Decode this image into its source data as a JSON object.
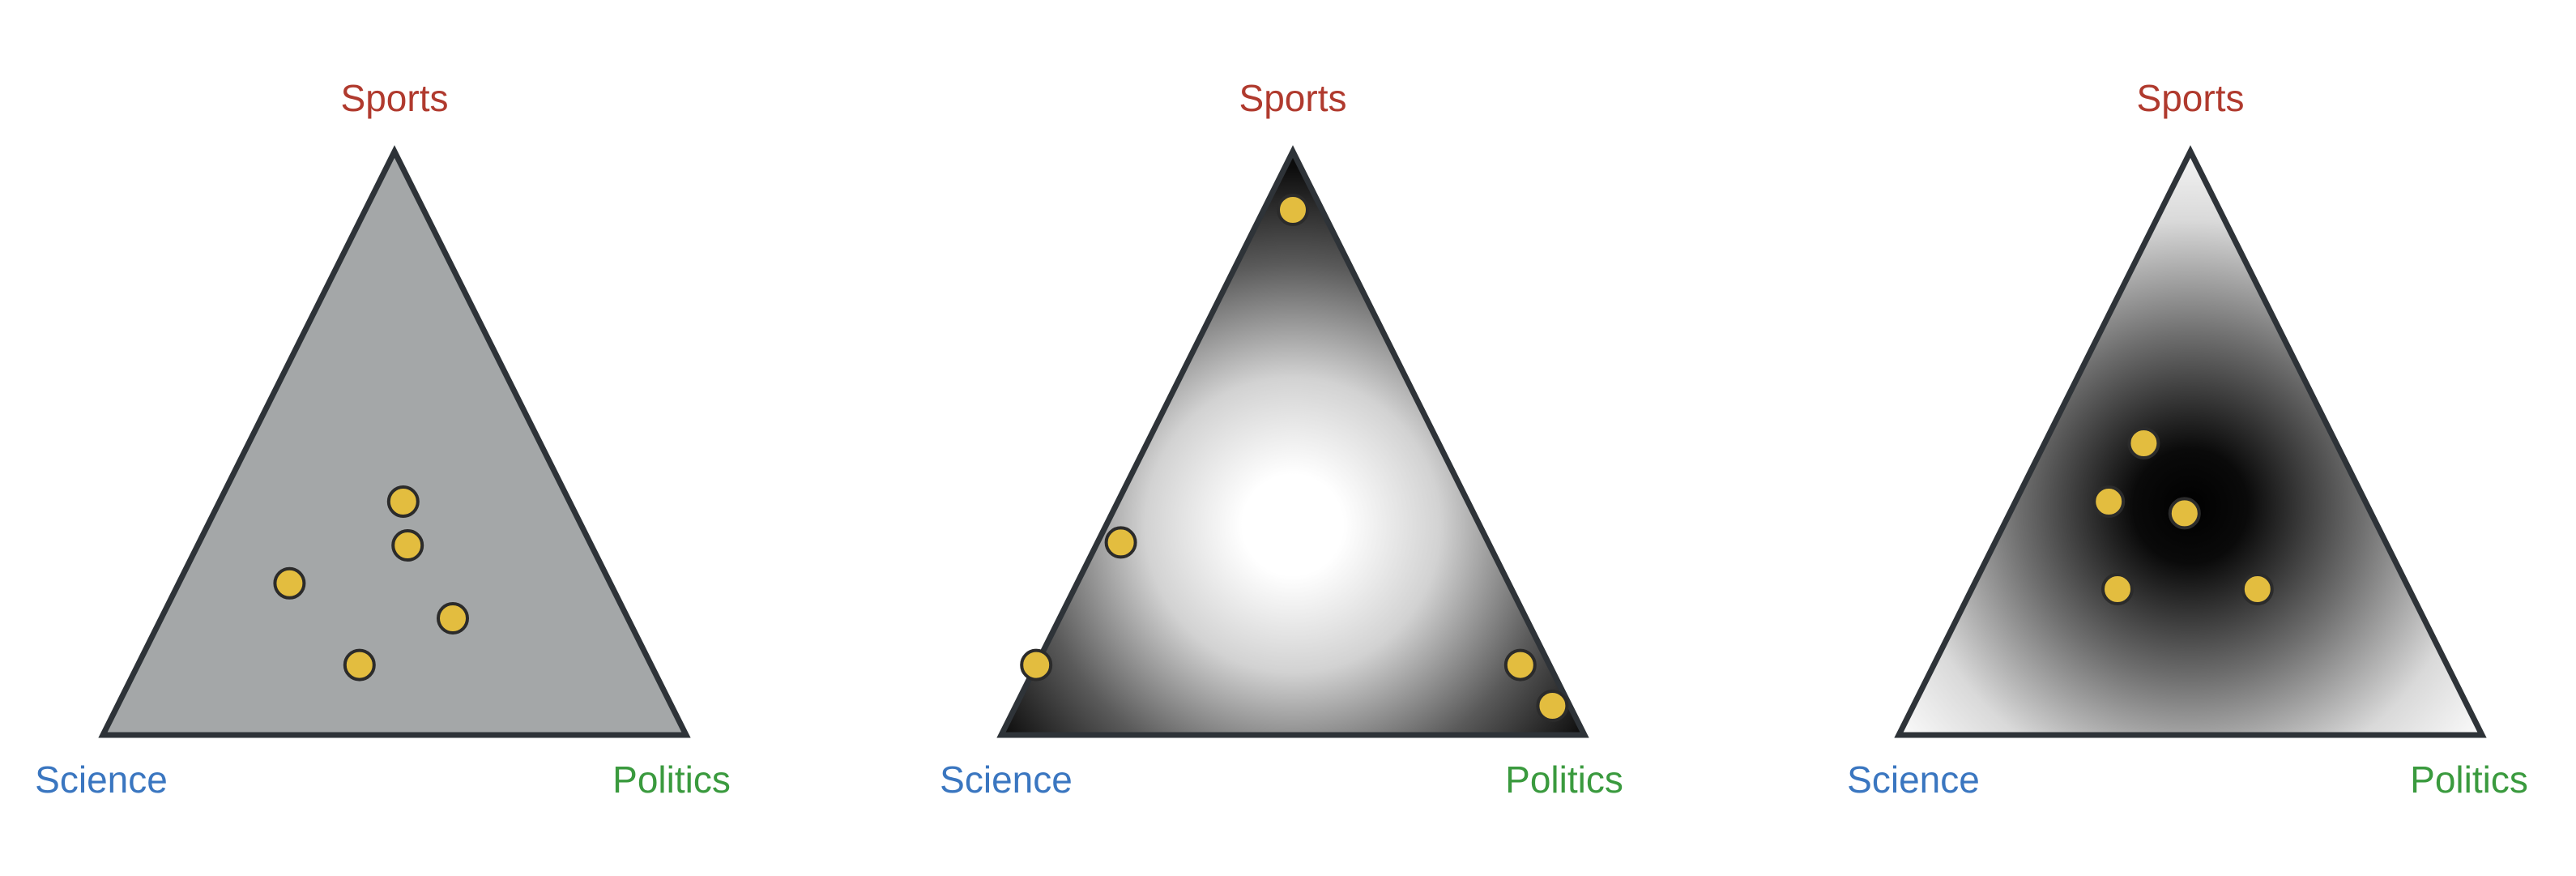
{
  "colors": {
    "sports": "#b03a2e",
    "science": "#3a76c0",
    "politics": "#3a9a3e",
    "point_fill": "#e3bd3f",
    "point_stroke": "#2b2b2b",
    "triangle_stroke": "#2e3338",
    "uniform_fill": "#a4a7a8"
  },
  "panels": [
    {
      "corner_labels": {
        "top": "Sports",
        "left": "Science",
        "right": "Politics"
      },
      "density": "uniform",
      "points": [
        {
          "science": 0.285,
          "politics": 0.315,
          "sports": 0.4
        },
        {
          "science": 0.315,
          "politics": 0.36,
          "sports": 0.325
        },
        {
          "science": 0.55,
          "politics": 0.19,
          "sports": 0.26
        },
        {
          "science": 0.3,
          "politics": 0.5,
          "sports": 0.2
        },
        {
          "science": 0.5,
          "politics": 0.38,
          "sports": 0.12
        }
      ]
    },
    {
      "corner_labels": {
        "top": "Sports",
        "left": "Science",
        "right": "Politics"
      },
      "density": "corners",
      "points": [
        {
          "science": 0.05,
          "politics": 0.05,
          "sports": 0.9
        },
        {
          "science": 0.63,
          "politics": 0.04,
          "sports": 0.33
        },
        {
          "science": 0.88,
          "politics": 0.0,
          "sports": 0.12
        },
        {
          "science": 0.05,
          "politics": 0.83,
          "sports": 0.12
        },
        {
          "science": 0.03,
          "politics": 0.92,
          "sports": 0.05
        }
      ]
    },
    {
      "corner_labels": {
        "top": "Sports",
        "left": "Science",
        "right": "Politics"
      },
      "density": "center",
      "points": [
        {
          "science": 0.33,
          "politics": 0.17,
          "sports": 0.5
        },
        {
          "science": 0.44,
          "politics": 0.16,
          "sports": 0.4
        },
        {
          "science": 0.32,
          "politics": 0.3,
          "sports": 0.38
        },
        {
          "science": 0.5,
          "politics": 0.25,
          "sports": 0.25
        },
        {
          "science": 0.26,
          "politics": 0.49,
          "sports": 0.25
        }
      ]
    }
  ]
}
